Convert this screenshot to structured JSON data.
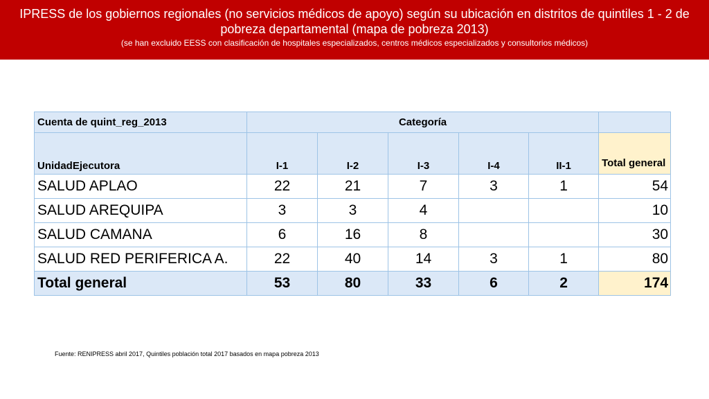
{
  "header": {
    "title": "IPRESS de los gobiernos regionales (no servicios médicos de apoyo) según su ubicación en distritos de quintiles 1 - 2 de pobreza departamental (mapa de pobreza 2013)",
    "subtitle": "(se han excluido EESS con clasificación de hospitales especializados, centros médicos especializados y consultorios médicos)",
    "bg_color": "#c00000"
  },
  "table": {
    "pivot_label": "Cuenta de quint_reg_2013",
    "column_group_label": "Categoría",
    "row_header": "UnidadEjecutora",
    "columns": [
      "I-1",
      "I-2",
      "I-3",
      "I-4",
      "II-1"
    ],
    "total_header": "Total general",
    "rows": [
      {
        "name": "SALUD APLAO",
        "values": [
          "22",
          "21",
          "7",
          "3",
          "1"
        ],
        "total": "54"
      },
      {
        "name": "SALUD AREQUIPA",
        "values": [
          "3",
          "3",
          "4",
          "",
          ""
        ],
        "total": "10"
      },
      {
        "name": "SALUD CAMANA",
        "values": [
          "6",
          "16",
          "8",
          "",
          ""
        ],
        "total": "30"
      },
      {
        "name": "SALUD RED PERIFERICA A.",
        "values": [
          "22",
          "40",
          "14",
          "3",
          "1"
        ],
        "total": "80"
      }
    ],
    "grand_total": {
      "name": "Total general",
      "values": [
        "53",
        "80",
        "33",
        "6",
        "2"
      ],
      "total": "174"
    },
    "header_fill": "#dbe8f7",
    "total_fill": "#fff2cc",
    "border_color": "#9dc3e6"
  },
  "source": "Fuente: RENIPRESS abril 2017, Quintiles población total 2017 basados en mapa pobreza 2013"
}
